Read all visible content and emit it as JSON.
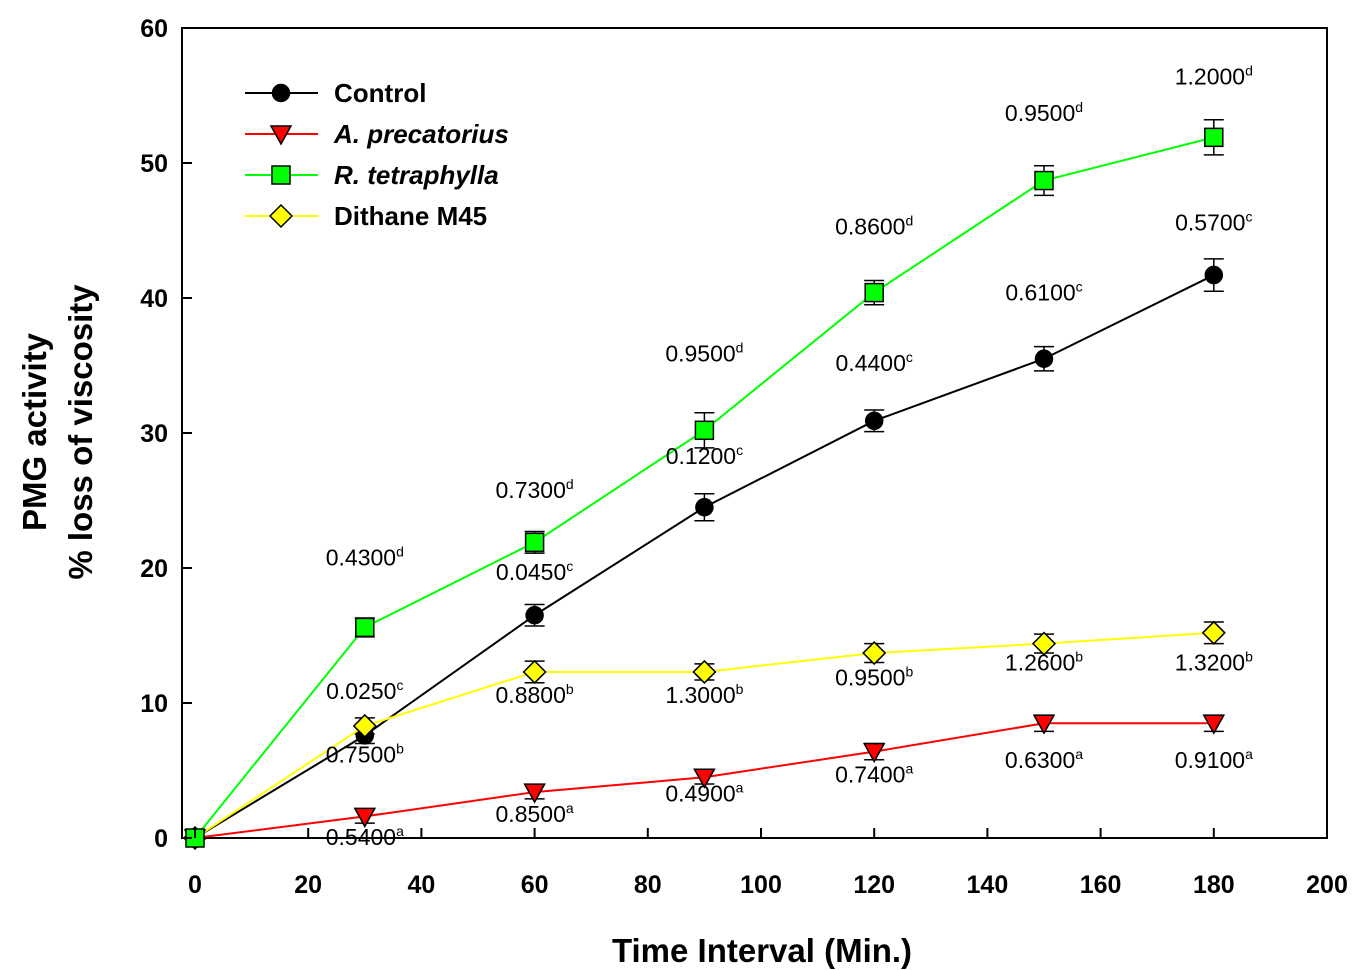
{
  "chart_data": {
    "type": "line",
    "xlabel": "Time  Interval (Min.)",
    "ylabel": [
      "PMG activity",
      "% loss of viscosity"
    ],
    "xlim": [
      0,
      200
    ],
    "ylim": [
      0,
      60
    ],
    "xticks": [
      0,
      20,
      40,
      60,
      80,
      100,
      120,
      140,
      160,
      180,
      200
    ],
    "yticks": [
      0,
      10,
      20,
      30,
      40,
      50,
      60
    ],
    "grid": false,
    "legend_position": "top-left",
    "x": [
      0,
      30,
      60,
      90,
      120,
      150,
      180
    ],
    "series": [
      {
        "name": "Control",
        "italic": false,
        "line_color": "#000000",
        "marker": "circle",
        "marker_color": "#000000",
        "values": [
          0,
          7.6,
          16.5,
          24.5,
          30.9,
          35.5,
          41.7
        ],
        "errors": [
          0,
          0.6,
          0.8,
          1.0,
          0.8,
          0.9,
          1.2
        ]
      },
      {
        "name": "A. precatorius",
        "italic": true,
        "line_color": "#ff0000",
        "marker": "triangle-down",
        "marker_color": "#ff0000",
        "values": [
          0,
          1.6,
          3.4,
          4.5,
          6.4,
          8.5,
          8.5
        ],
        "errors": [
          0,
          0.5,
          0.5,
          0.5,
          0.6,
          0.6,
          0.6
        ]
      },
      {
        "name": "R. tetraphylla",
        "italic": true,
        "line_color": "#00ff00",
        "marker": "square",
        "marker_color": "#00ff00",
        "values": [
          0,
          15.6,
          21.9,
          30.2,
          40.4,
          48.7,
          51.9
        ],
        "errors": [
          0,
          0.7,
          0.8,
          1.3,
          0.9,
          1.1,
          1.3
        ]
      },
      {
        "name": "Dithane M45",
        "italic": false,
        "line_color": "#ffff00",
        "marker": "diamond",
        "marker_color": "#ffff00",
        "values": [
          0,
          8.3,
          12.3,
          12.3,
          13.7,
          14.4,
          15.2
        ],
        "errors": [
          0,
          0.6,
          0.8,
          0.6,
          0.7,
          0.7,
          0.8
        ]
      }
    ],
    "annotations": [
      {
        "text": "0.4300",
        "sup": "d",
        "x": 30,
        "y": 20.2
      },
      {
        "text": "0.7300",
        "sup": "d",
        "x": 60,
        "y": 25.2
      },
      {
        "text": "0.9500",
        "sup": "d",
        "x": 90,
        "y": 35.3
      },
      {
        "text": "0.8600",
        "sup": "d",
        "x": 120,
        "y": 44.7
      },
      {
        "text": "0.9500",
        "sup": "d",
        "x": 150,
        "y": 53.1
      },
      {
        "text": "1.2000",
        "sup": "d",
        "x": 180,
        "y": 55.8
      },
      {
        "text": "0.0450",
        "sup": "c",
        "x": 60,
        "y": 19.1
      },
      {
        "text": "0.1200",
        "sup": "c",
        "x": 90,
        "y": 27.7
      },
      {
        "text": "0.4400",
        "sup": "c",
        "x": 120,
        "y": 34.6
      },
      {
        "text": "0.6100",
        "sup": "c",
        "x": 150,
        "y": 39.8
      },
      {
        "text": "0.5700",
        "sup": "c",
        "x": 180,
        "y": 45.0
      },
      {
        "text": "0.0250",
        "sup": "c",
        "x": 30,
        "y": 10.3
      },
      {
        "text": "0.7500",
        "sup": "b",
        "x": 30,
        "y": 5.6
      },
      {
        "text": "0.8800",
        "sup": "b",
        "x": 60,
        "y": 10.0
      },
      {
        "text": "1.3000",
        "sup": "b",
        "x": 90,
        "y": 10.0
      },
      {
        "text": "0.9500",
        "sup": "b",
        "x": 120,
        "y": 11.3
      },
      {
        "text": "1.2600",
        "sup": "b",
        "x": 150,
        "y": 12.4
      },
      {
        "text": "1.3200",
        "sup": "b",
        "x": 180,
        "y": 12.4
      },
      {
        "text": "0.5400",
        "sup": "a",
        "x": 30,
        "y": -0.5
      },
      {
        "text": "0.8500",
        "sup": "a",
        "x": 60,
        "y": 1.2
      },
      {
        "text": "0.4900",
        "sup": "a",
        "x": 90,
        "y": 2.7
      },
      {
        "text": "0.7400",
        "sup": "a",
        "x": 120,
        "y": 4.1
      },
      {
        "text": "0.6300",
        "sup": "a",
        "x": 150,
        "y": 5.2
      },
      {
        "text": "0.9100",
        "sup": "a",
        "x": 180,
        "y": 5.2
      }
    ]
  }
}
